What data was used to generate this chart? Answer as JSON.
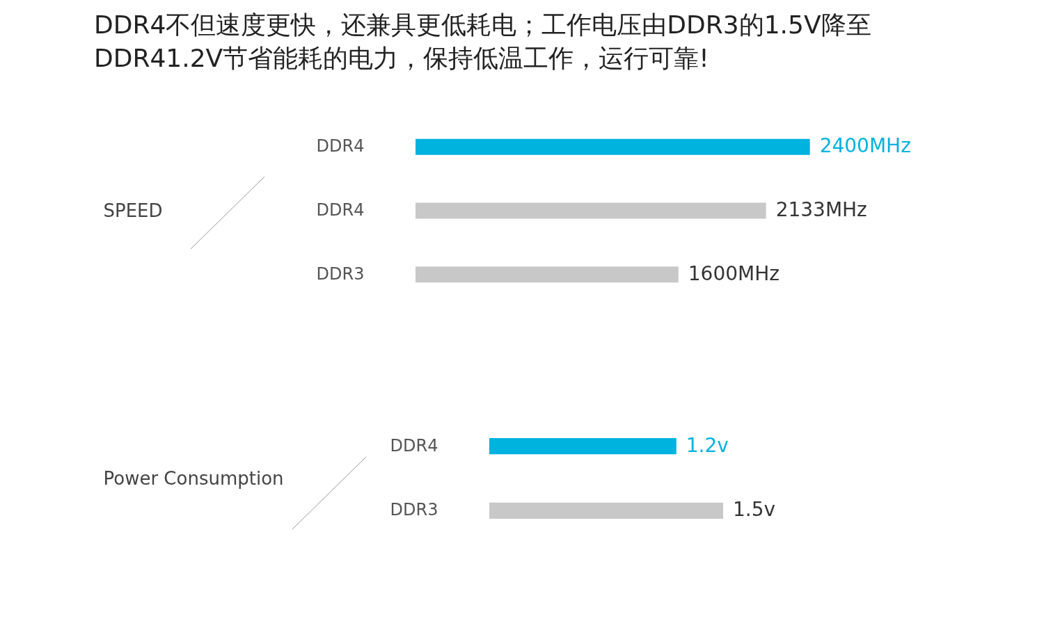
{
  "chart_data": [
    {
      "type": "bar",
      "orientation": "horizontal",
      "title": "DDR4不但速度更快，还兼具更低耗电；工作电压由DDR3的1.5V降至DDR41.2V节省能耗的电力，保持低温工作，运行可靠!",
      "ylabel": "SPEED",
      "categories": [
        "DDR4",
        "DDR4",
        "DDR3"
      ],
      "values": [
        2400,
        2133,
        1600
      ],
      "colors": [
        "#00b2de",
        "#c8c8c8",
        "#c8c8c8"
      ],
      "value_labels": [
        "2400MHz",
        "2133MHz",
        "1600MHz"
      ]
    },
    {
      "type": "bar",
      "orientation": "horizontal",
      "ylabel": "Power Consumption",
      "categories": [
        "DDR4",
        "DDR3"
      ],
      "values": [
        1.2,
        1.5
      ],
      "colors": [
        "#00b2de",
        "#c8c8c8"
      ],
      "value_labels": [
        "1.2v",
        "1.5v"
      ]
    }
  ]
}
